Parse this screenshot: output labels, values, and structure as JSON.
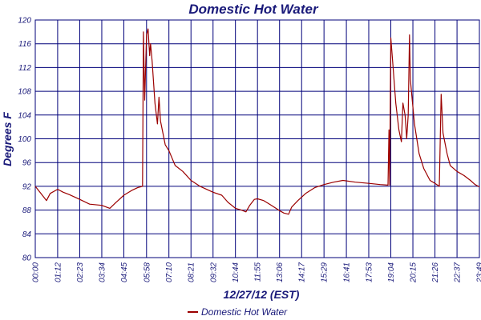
{
  "colors": {
    "series": "#9b0000",
    "grid": "#00007a",
    "text": "#1a1a7a"
  },
  "chart_data": {
    "type": "line",
    "title": "Domestic Hot Water",
    "xlabel": "12/27/12 (EST)",
    "ylabel": "Degrees F",
    "ylim": [
      80,
      120
    ],
    "yticks": [
      80,
      84,
      88,
      92,
      96,
      100,
      104,
      108,
      112,
      116,
      120
    ],
    "xlim": [
      0,
      1429
    ],
    "xticks": [
      {
        "t": 0,
        "label": "00:00"
      },
      {
        "t": 72,
        "label": "01:12"
      },
      {
        "t": 143,
        "label": "02:23"
      },
      {
        "t": 214,
        "label": "03:34"
      },
      {
        "t": 285,
        "label": "04:45"
      },
      {
        "t": 358,
        "label": "05:58"
      },
      {
        "t": 430,
        "label": "07:10"
      },
      {
        "t": 501,
        "label": "08:21"
      },
      {
        "t": 572,
        "label": "09:32"
      },
      {
        "t": 644,
        "label": "10:44"
      },
      {
        "t": 715,
        "label": "11:55"
      },
      {
        "t": 786,
        "label": "13:06"
      },
      {
        "t": 857,
        "label": "14:17"
      },
      {
        "t": 929,
        "label": "15:29"
      },
      {
        "t": 1001,
        "label": "16:41"
      },
      {
        "t": 1073,
        "label": "17:53"
      },
      {
        "t": 1144,
        "label": "19:04"
      },
      {
        "t": 1215,
        "label": "20:15"
      },
      {
        "t": 1286,
        "label": "21:26"
      },
      {
        "t": 1357,
        "label": "22:37"
      },
      {
        "t": 1429,
        "label": "23:49"
      }
    ],
    "grid": true,
    "legend_position": "bottom-center",
    "series": [
      {
        "name": "Domestic Hot Water",
        "points": [
          [
            0,
            92.0
          ],
          [
            18,
            90.8
          ],
          [
            36,
            89.6
          ],
          [
            48,
            90.8
          ],
          [
            72,
            91.5
          ],
          [
            90,
            91.0
          ],
          [
            110,
            90.6
          ],
          [
            143,
            89.8
          ],
          [
            175,
            89.0
          ],
          [
            214,
            88.8
          ],
          [
            240,
            88.3
          ],
          [
            260,
            89.3
          ],
          [
            285,
            90.5
          ],
          [
            310,
            91.3
          ],
          [
            330,
            91.8
          ],
          [
            345,
            92.0
          ],
          [
            348,
            118.0
          ],
          [
            352,
            106.5
          ],
          [
            358,
            117.5
          ],
          [
            363,
            118.5
          ],
          [
            368,
            114.0
          ],
          [
            371,
            116.0
          ],
          [
            376,
            113.0
          ],
          [
            385,
            106.0
          ],
          [
            393,
            102.5
          ],
          [
            398,
            107.0
          ],
          [
            403,
            103.0
          ],
          [
            418,
            99.0
          ],
          [
            430,
            98.0
          ],
          [
            450,
            95.5
          ],
          [
            475,
            94.5
          ],
          [
            501,
            93.0
          ],
          [
            530,
            92.0
          ],
          [
            572,
            91.0
          ],
          [
            600,
            90.5
          ],
          [
            620,
            89.3
          ],
          [
            644,
            88.3
          ],
          [
            663,
            88.0
          ],
          [
            678,
            87.7
          ],
          [
            690,
            88.8
          ],
          [
            705,
            89.8
          ],
          [
            715,
            89.9
          ],
          [
            735,
            89.6
          ],
          [
            760,
            88.8
          ],
          [
            786,
            87.9
          ],
          [
            800,
            87.5
          ],
          [
            815,
            87.3
          ],
          [
            825,
            88.5
          ],
          [
            845,
            89.6
          ],
          [
            870,
            90.8
          ],
          [
            900,
            91.8
          ],
          [
            929,
            92.3
          ],
          [
            960,
            92.7
          ],
          [
            990,
            93.0
          ],
          [
            1030,
            92.7
          ],
          [
            1073,
            92.5
          ],
          [
            1110,
            92.3
          ],
          [
            1135,
            92.2
          ],
          [
            1138,
            101.5
          ],
          [
            1140,
            92.2
          ],
          [
            1144,
            117.0
          ],
          [
            1150,
            113.0
          ],
          [
            1160,
            106.0
          ],
          [
            1170,
            101.5
          ],
          [
            1178,
            99.5
          ],
          [
            1183,
            106.0
          ],
          [
            1190,
            104.0
          ],
          [
            1195,
            100.0
          ],
          [
            1200,
            104.0
          ],
          [
            1204,
            117.5
          ],
          [
            1207,
            110.0
          ],
          [
            1212,
            107.0
          ],
          [
            1220,
            102.5
          ],
          [
            1235,
            97.5
          ],
          [
            1250,
            95.0
          ],
          [
            1270,
            93.0
          ],
          [
            1286,
            92.5
          ],
          [
            1300,
            92.0
          ],
          [
            1306,
            107.5
          ],
          [
            1312,
            101.0
          ],
          [
            1325,
            97.5
          ],
          [
            1335,
            95.5
          ],
          [
            1357,
            94.5
          ],
          [
            1380,
            93.8
          ],
          [
            1400,
            93.0
          ],
          [
            1415,
            92.3
          ],
          [
            1429,
            91.9
          ]
        ]
      }
    ]
  }
}
